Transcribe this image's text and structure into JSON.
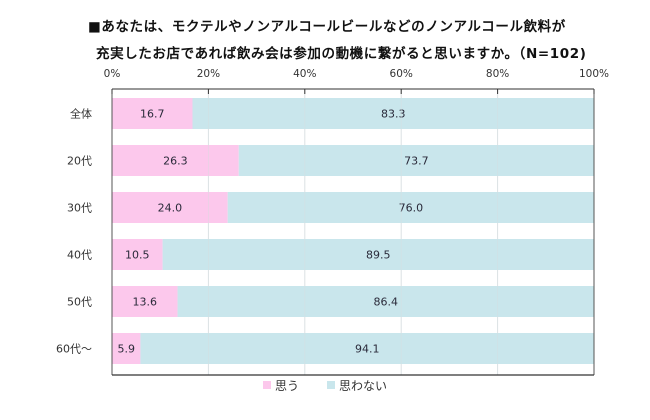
{
  "chart_data": {
    "type": "bar",
    "orientation": "horizontal",
    "stacked": true,
    "title_lines": [
      "■あなたは、モクテルやノンアルコールビールなどのノンアルコール飲料が",
      "充実したお店であれば飲み会は参加の動機に繋がると思いますか。（N=102)"
    ],
    "categories": [
      "全体",
      "20代",
      "30代",
      "40代",
      "50代",
      "60代～"
    ],
    "series": [
      {
        "name": "思う",
        "color": "#FCC8EC",
        "values": [
          16.7,
          26.3,
          24.0,
          10.5,
          13.6,
          5.9
        ]
      },
      {
        "name": "思わない",
        "color": "#C9E6EC",
        "values": [
          83.3,
          73.7,
          76.0,
          89.5,
          86.4,
          94.1
        ]
      }
    ],
    "value_labels": [
      [
        "16.7",
        "26.3",
        "24.0",
        "10.5",
        "13.6",
        "5.9"
      ],
      [
        "83.3",
        "73.7",
        "76.0",
        "89.5",
        "86.4",
        "94.1"
      ]
    ],
    "xlim": [
      0,
      100
    ],
    "x_ticks": [
      0,
      20,
      40,
      60,
      80,
      100
    ],
    "x_tick_labels": [
      "0%",
      "20%",
      "40%",
      "60%",
      "80%",
      "100%"
    ],
    "xaxis_position": "top",
    "grid": true,
    "legend": {
      "placement": "bottom"
    },
    "xlabel": "",
    "ylabel": ""
  }
}
